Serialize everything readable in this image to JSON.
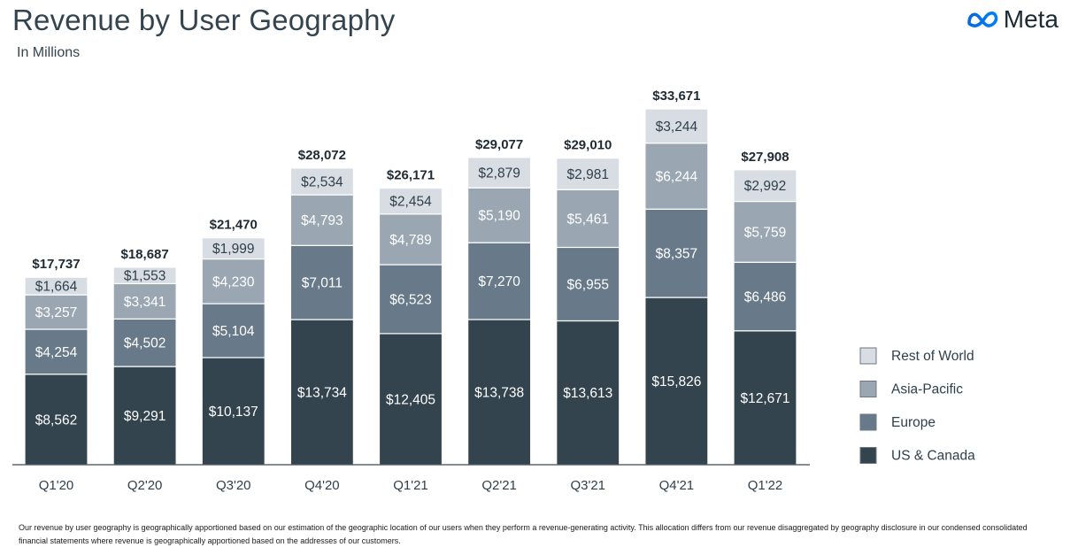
{
  "header": {
    "title": "Revenue by User Geography",
    "subtitle": "In Millions",
    "logo_text": "Meta"
  },
  "colors": {
    "US & Canada": "#34444f",
    "Europe": "#687a8a",
    "Asia-Pacific": "#9aa7b3",
    "Rest of World": "#d7dde2"
  },
  "chart_data": {
    "type": "bar",
    "stacked": true,
    "categories": [
      "Q1'20",
      "Q2'20",
      "Q3'20",
      "Q4'20",
      "Q1'21",
      "Q2'21",
      "Q3'21",
      "Q4'21",
      "Q1'22"
    ],
    "series": [
      {
        "name": "US & Canada",
        "values": [
          8562,
          9291,
          10137,
          13734,
          12405,
          13738,
          13613,
          15826,
          12671
        ],
        "labels": [
          "$8,562",
          "$9,291",
          "$10,137",
          "$13,734",
          "$12,405",
          "$13,738",
          "$13,613",
          "$15,826",
          "$12,671"
        ]
      },
      {
        "name": "Europe",
        "values": [
          4254,
          4502,
          5104,
          7011,
          6523,
          7270,
          6955,
          8357,
          6486
        ],
        "labels": [
          "$4,254",
          "$4,502",
          "$5,104",
          "$7,011",
          "$6,523",
          "$7,270",
          "$6,955",
          "$8,357",
          "$6,486"
        ]
      },
      {
        "name": "Asia-Pacific",
        "values": [
          3257,
          3341,
          4230,
          4793,
          4789,
          5190,
          5461,
          6244,
          5759
        ],
        "labels": [
          "$3,257",
          "$3,341",
          "$4,230",
          "$4,793",
          "$4,789",
          "$5,190",
          "$5,461",
          "$6,244",
          "$5,759"
        ]
      },
      {
        "name": "Rest of World",
        "values": [
          1664,
          1553,
          1999,
          2534,
          2454,
          2879,
          2981,
          3244,
          2992
        ],
        "labels": [
          "$1,664",
          "$1,553",
          "$1,999",
          "$2,534",
          "$2,454",
          "$2,879",
          "$2,981",
          "$3,244",
          "$2,992"
        ]
      }
    ],
    "totals": [
      17737,
      18687,
      21470,
      28072,
      26171,
      29077,
      29010,
      33671,
      27908
    ],
    "total_labels": [
      "$17,737",
      "$18,687",
      "$21,470",
      "$28,072",
      "$26,171",
      "$29,077",
      "$29,010",
      "$33,671",
      "$27,908"
    ],
    "legend_order": [
      "Rest of World",
      "Asia-Pacific",
      "Europe",
      "US & Canada"
    ],
    "legend_position": "right",
    "grid": false,
    "ylim": [
      0,
      33671
    ]
  },
  "footnote": "Our revenue by user geography is geographically apportioned based on our estimation of the geographic location of our users when they perform a revenue-generating activity. This allocation differs from our revenue disaggregated by geography disclosure in our condensed consolidated financial statements where revenue is geographically apportioned based on the addresses of our customers."
}
